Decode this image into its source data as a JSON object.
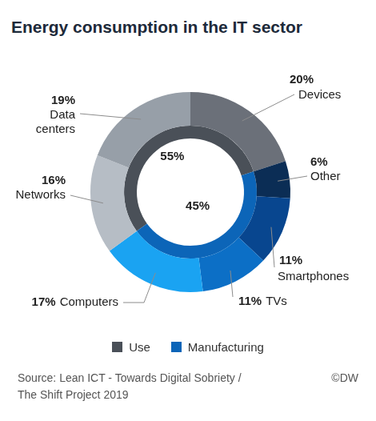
{
  "chart_data": {
    "type": "doughnut",
    "title": "Energy consumption in the IT sector",
    "rings": [
      {
        "categories": [
          "Devices",
          "Other",
          "Smartphones",
          "TVs",
          "Computers",
          "Networks",
          "Data centers"
        ],
        "values": [
          20,
          6,
          11,
          11,
          17,
          16,
          19
        ],
        "value_labels": [
          "20%",
          "6%",
          "11%",
          "11%",
          "17%",
          "16%",
          "19%"
        ],
        "colors": [
          "#6b7079",
          "#0b2d55",
          "#08468f",
          "#0c6fc6",
          "#1aa3f2",
          "#b6bdc5",
          "#979fa8"
        ],
        "groups": [
          "Use",
          "Manufacturing",
          "Manufacturing",
          "Manufacturing",
          "Manufacturing",
          "Use",
          "Use"
        ]
      },
      {
        "categories": [
          "Use",
          "Manufacturing"
        ],
        "values": [
          55,
          45
        ],
        "value_labels": [
          "55%",
          "45%"
        ],
        "colors": [
          "#4a5058",
          "#0c65b8"
        ]
      }
    ],
    "data_labels": true,
    "legend": "bottom",
    "source": [
      "Source: Lean ICT - Towards Digital Sobriety /",
      "The Shift Project 2019"
    ],
    "credit": "©DW"
  }
}
